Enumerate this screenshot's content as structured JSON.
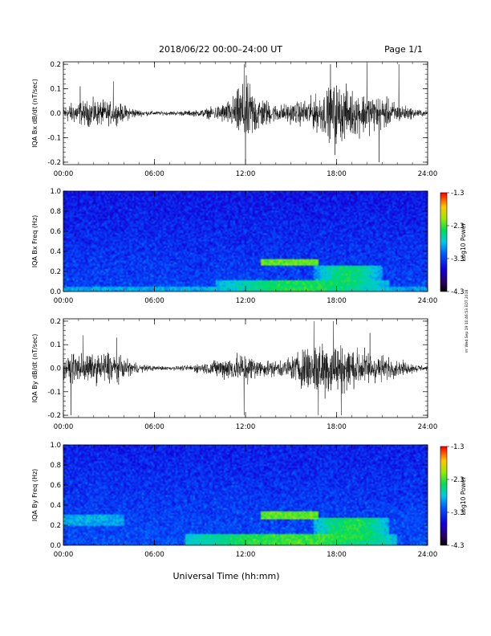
{
  "header": {
    "title": "2018/06/22  00:00–24:00 UT",
    "page": "Page 1/1"
  },
  "footer": {
    "xlabel": "Universal Time (hh:mm)",
    "stamp": "rrr Wed Sep 19 10:46:53 EDT 2018"
  },
  "colorbar": {
    "label": "Log10 Power",
    "ticks": [
      "-1.3",
      "-2.3",
      "-3.3",
      "-4.3"
    ]
  },
  "chart_data": [
    {
      "type": "line",
      "title": "",
      "ylabel": "IQA Bx dB/dt (nT/sec)",
      "xlim": [
        "00:00",
        "24:00"
      ],
      "ylim": [
        -0.21,
        0.21
      ],
      "xticks": [
        "00:00",
        "06:00",
        "12:00",
        "18:00",
        "24:00"
      ],
      "yticks": [
        "0.2",
        "0.1",
        "0.0",
        "-0.1",
        "-0.2"
      ],
      "ytick_values": [
        0.2,
        0.1,
        0.0,
        -0.1,
        -0.2
      ],
      "series": [
        {
          "envelope_hours": [
            0,
            1,
            2,
            3,
            4,
            5,
            6,
            7,
            8,
            9,
            10,
            11,
            12,
            13,
            14,
            15,
            16,
            17,
            18,
            19,
            20,
            21,
            22,
            23,
            24
          ],
          "envelope_amplitude": [
            0.05,
            0.07,
            0.08,
            0.07,
            0.05,
            0.02,
            0.012,
            0.012,
            0.015,
            0.02,
            0.04,
            0.08,
            0.2,
            0.1,
            0.05,
            0.06,
            0.08,
            0.12,
            0.18,
            0.14,
            0.12,
            0.1,
            0.06,
            0.03,
            0.015
          ],
          "peaks": [
            {
              "x": 1.1,
              "y": 0.11
            },
            {
              "x": 3.3,
              "y": 0.13
            },
            {
              "x": 11.9,
              "y": 0.2
            },
            {
              "x": 12.0,
              "y": -0.2
            },
            {
              "x": 17.6,
              "y": 0.2
            },
            {
              "x": 17.9,
              "y": -0.17
            },
            {
              "x": 20.0,
              "y": 0.2
            },
            {
              "x": 20.8,
              "y": -0.2
            },
            {
              "x": 22.1,
              "y": 0.2
            }
          ]
        }
      ]
    },
    {
      "type": "heatmap",
      "title": "",
      "ylabel": "IQA Bx Freq (Hz)",
      "xlim": [
        "00:00",
        "24:00"
      ],
      "ylim": [
        0.0,
        1.0
      ],
      "xticks": [
        "00:00",
        "06:00",
        "12:00",
        "18:00",
        "24:00"
      ],
      "yticks": [
        "1.0",
        "0.8",
        "0.6",
        "0.4",
        "0.2",
        "0.0"
      ],
      "ytick_values": [
        1.0,
        0.8,
        0.6,
        0.4,
        0.2,
        0.0
      ],
      "color_range": [
        -4.3,
        -1.3
      ],
      "background_power": -3.4,
      "features": [
        {
          "kind": "band",
          "t0": 13.0,
          "t1": 16.8,
          "f0": 0.26,
          "f1": 0.33,
          "power": -2.2
        },
        {
          "kind": "band",
          "t0": 0.0,
          "t1": 24.0,
          "f0": 0.0,
          "f1": 0.05,
          "power": -2.9
        },
        {
          "kind": "blob",
          "t0": 10.0,
          "t1": 21.5,
          "f0": 0.0,
          "f1": 0.12,
          "power": -2.4
        },
        {
          "kind": "blob",
          "t0": 16.5,
          "t1": 21.0,
          "f0": 0.05,
          "f1": 0.25,
          "power": -2.5
        }
      ]
    },
    {
      "type": "line",
      "title": "",
      "ylabel": "IQA By dB/dt (nT/sec)",
      "xlim": [
        "00:00",
        "24:00"
      ],
      "ylim": [
        -0.21,
        0.21
      ],
      "xticks": [
        "00:00",
        "06:00",
        "12:00",
        "18:00",
        "24:00"
      ],
      "yticks": [
        "0.2",
        "0.1",
        "0.0",
        "-0.1",
        "-0.2"
      ],
      "ytick_values": [
        0.2,
        0.1,
        0.0,
        -0.1,
        -0.2
      ],
      "series": [
        {
          "envelope_hours": [
            0,
            1,
            2,
            3,
            4,
            5,
            6,
            7,
            8,
            9,
            10,
            11,
            12,
            13,
            14,
            15,
            16,
            17,
            18,
            19,
            20,
            21,
            22,
            23,
            24
          ],
          "envelope_amplitude": [
            0.06,
            0.1,
            0.08,
            0.11,
            0.06,
            0.025,
            0.015,
            0.012,
            0.015,
            0.03,
            0.05,
            0.08,
            0.1,
            0.05,
            0.05,
            0.07,
            0.14,
            0.19,
            0.16,
            0.13,
            0.11,
            0.08,
            0.05,
            0.03,
            0.015
          ],
          "peaks": [
            {
              "x": 0.5,
              "y": -0.2
            },
            {
              "x": 1.3,
              "y": 0.14
            },
            {
              "x": 3.5,
              "y": 0.13
            },
            {
              "x": 11.9,
              "y": -0.2
            },
            {
              "x": 16.5,
              "y": 0.2
            },
            {
              "x": 16.8,
              "y": -0.2
            },
            {
              "x": 17.8,
              "y": 0.2
            },
            {
              "x": 18.3,
              "y": -0.2
            },
            {
              "x": 20.2,
              "y": 0.15
            }
          ]
        }
      ]
    },
    {
      "type": "heatmap",
      "title": "",
      "ylabel": "IQA By Freq (Hz)",
      "xlim": [
        "00:00",
        "24:00"
      ],
      "ylim": [
        0.0,
        1.0
      ],
      "xticks": [
        "00:00",
        "06:00",
        "12:00",
        "18:00",
        "24:00"
      ],
      "yticks": [
        "1.0",
        "0.8",
        "0.6",
        "0.4",
        "0.2",
        "0.0"
      ],
      "ytick_values": [
        1.0,
        0.8,
        0.6,
        0.4,
        0.2,
        0.0
      ],
      "color_range": [
        -4.3,
        -1.3
      ],
      "background_power": -3.35,
      "features": [
        {
          "kind": "band",
          "t0": 13.0,
          "t1": 16.8,
          "f0": 0.26,
          "f1": 0.34,
          "power": -2.2
        },
        {
          "kind": "band",
          "t0": 0.0,
          "t1": 4.0,
          "f0": 0.2,
          "f1": 0.3,
          "power": -2.9
        },
        {
          "kind": "blob",
          "t0": 8.0,
          "t1": 22.0,
          "f0": 0.0,
          "f1": 0.12,
          "power": -2.3
        },
        {
          "kind": "blob",
          "t0": 16.5,
          "t1": 21.5,
          "f0": 0.05,
          "f1": 0.28,
          "power": -2.4
        }
      ]
    }
  ]
}
